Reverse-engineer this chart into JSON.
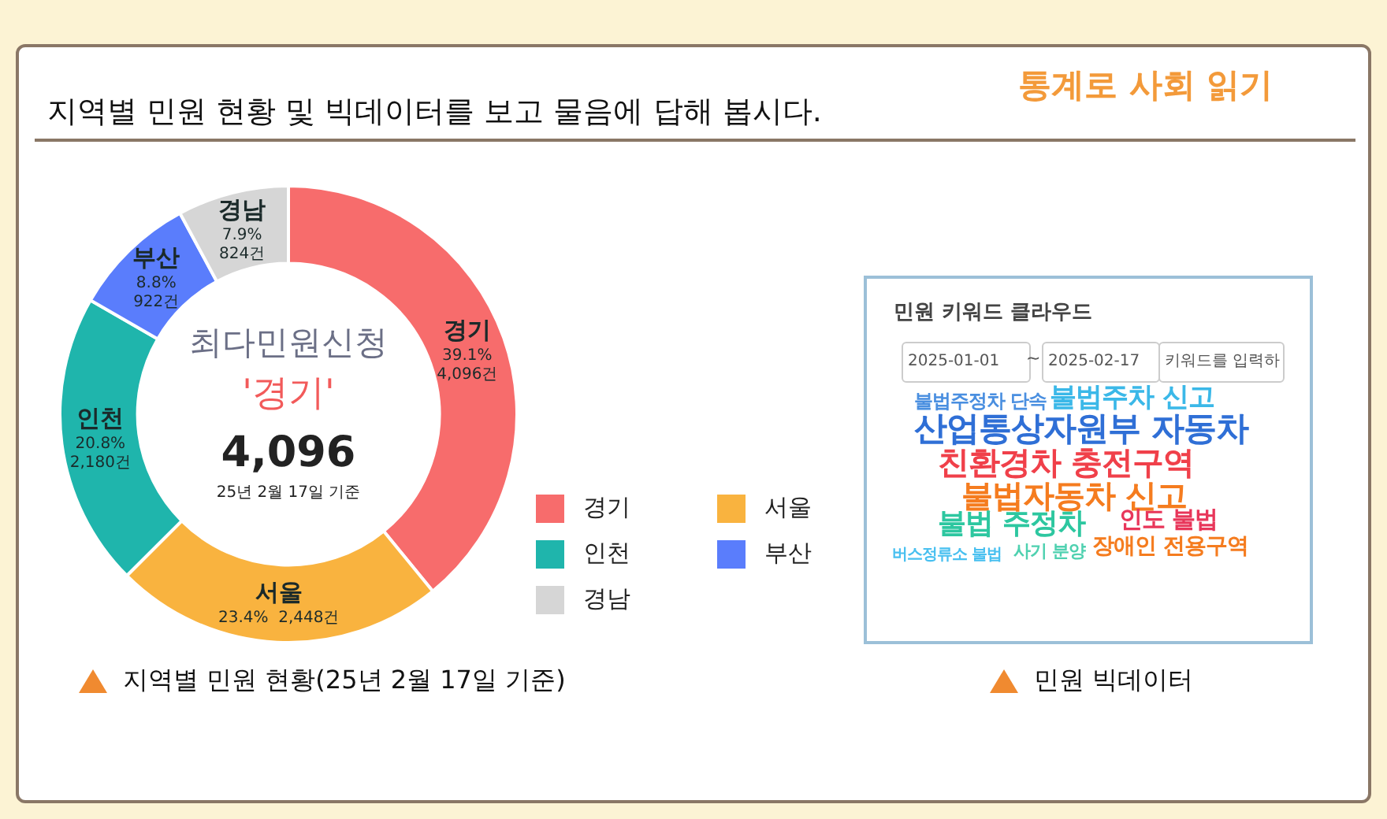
{
  "chart_data": [
    {
      "type": "donut",
      "title": "지역별 민원 현황 및 빅데이터를 보고 물음에 답해 봅시다.",
      "categories": [
        "경기",
        "서울",
        "인천",
        "부산",
        "경남"
      ],
      "values": [
        4096,
        2448,
        2180,
        922,
        824
      ],
      "colors": [
        "#f76c6c",
        "#f9b33f",
        "#1fb5ac",
        "#5a7dfc",
        "#d6d6d6"
      ],
      "value_labels": [
        "39.1%\n4,096건",
        "23.4%  2,448건",
        "20.8%\n2,180건",
        "8.8%\n922건",
        "7.9%\n824건"
      ],
      "legend": "right",
      "annotations": [
        "최다민원신청",
        "'경기'",
        "4,096",
        "25년 2월 17일 기준",
        "지역별 민원 현황(25년 2월 17일 기준)",
        "통계로 사회 읽기"
      ]
    },
    {
      "type": "other",
      "title": "민원 키워드 클라우드",
      "annotations": [
        "2025-01-01",
        "~",
        "2025-02-17",
        "키워드를 입력하",
        "불법주정차 단속",
        "불법주차 신고",
        "산업통상자원부 자동차",
        "친환경차 충전구역",
        "불법자동차 신고",
        "불법 주정차",
        "인도 불법",
        "장애인 전용구역",
        "버스정류소 불법",
        "사기 분양",
        "민원 빅데이터"
      ]
    }
  ]
}
